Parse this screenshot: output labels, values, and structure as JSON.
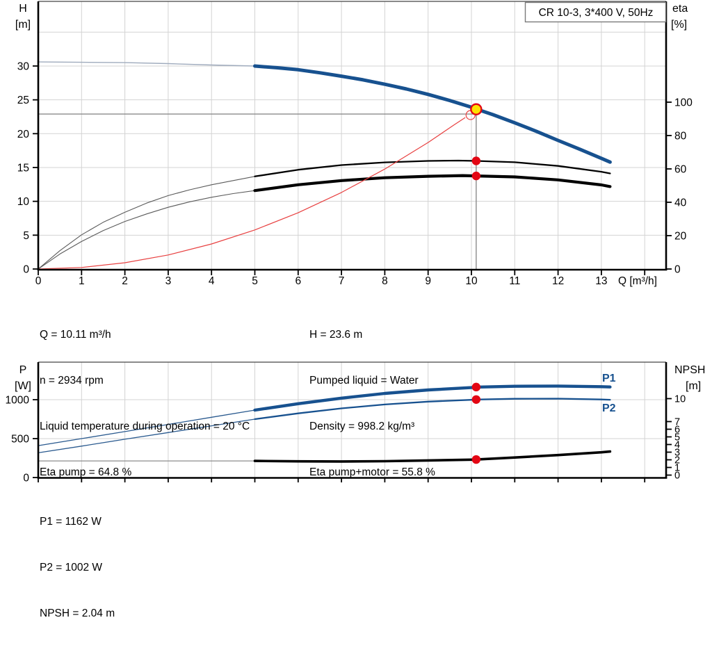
{
  "header": {
    "title_box": "CR 10-3, 3*400 V, 50Hz",
    "title_border_color": "#7a7a7a"
  },
  "top_chart_text": {
    "y_axis": "H",
    "y_axis_unit": "[m]",
    "right_axis": "eta",
    "right_axis_unit": "[%]",
    "x_axis": "Q [m³/h]"
  },
  "bottom_chart_text": {
    "y_axis": "P",
    "y_axis_unit": "[W]",
    "right_axis": "NPSH",
    "right_axis_unit": "[m]",
    "p1_label": "P1",
    "p2_label": "P2"
  },
  "info": {
    "left": [
      "Q = 10.11 m³/h",
      "n = 2934 rpm",
      "Liquid temperature during operation = 20 °C",
      "Eta pump = 64.8 %"
    ],
    "right": [
      "H = 23.6 m",
      "Pumped liquid = Water",
      "Density = 998.2 kg/m³",
      "Eta pump+motor = 55.8 %"
    ]
  },
  "results": [
    "P1 = 1162 W",
    "P2 = 1002 W",
    "NPSH = 2.04 m"
  ],
  "colors": {
    "curve_blue": "#17518f",
    "curve_blue_thin": "#2a5a8f",
    "pre_range_gray_blue": "#9fabbd",
    "pre_range_gray": "#5a5a5a",
    "black": "#000000",
    "npsh_thin": "#8c8c8c",
    "system_red": "#e84040",
    "marker_red": "#e30613",
    "duty_yellow": "#ffe000",
    "grid": "#d3d3d3",
    "crosshair": "#8a8a8a",
    "axis": "#000000"
  },
  "chart_data": [
    {
      "type": "line",
      "title": "CR 10-3, 3*400 V, 50Hz",
      "xlabel": "Q [m³/h]",
      "ylabel": "H [m]",
      "y2label": "eta [%]",
      "xticks": [
        0,
        1,
        2,
        3,
        4,
        5,
        6,
        7,
        8,
        9,
        10,
        11,
        12,
        13
      ],
      "yticks": [
        0,
        5,
        10,
        15,
        20,
        25,
        30
      ],
      "y2ticks": [
        0,
        20,
        40,
        60,
        80,
        100
      ],
      "xlim": [
        0,
        14.5
      ],
      "ylim": [
        0,
        39.5
      ],
      "y2lim": [
        0,
        160
      ],
      "grid": true,
      "duty_point": {
        "q": 10.11,
        "h": 23.6
      },
      "crosshair": {
        "q": 10.11,
        "h": 22.9
      },
      "arrow_ring": {
        "q": 9.98,
        "h": 22.75
      },
      "markers": [
        {
          "q": 10.11,
          "eta": 64.8
        },
        {
          "q": 10.11,
          "eta": 55.8
        }
      ],
      "series": [
        {
          "name": "head-pre-range",
          "axis": "h",
          "color": "#9fabbd",
          "width": 1.4,
          "points": [
            [
              0,
              30.6
            ],
            [
              1,
              30.55
            ],
            [
              2,
              30.5
            ],
            [
              3,
              30.35
            ],
            [
              4,
              30.15
            ],
            [
              5,
              30.0
            ]
          ]
        },
        {
          "name": "head",
          "axis": "h",
          "color": "#17518f",
          "width": 5,
          "points": [
            [
              5,
              30.0
            ],
            [
              5.5,
              29.75
            ],
            [
              6,
              29.45
            ],
            [
              6.5,
              29.0
            ],
            [
              7,
              28.5
            ],
            [
              7.5,
              27.95
            ],
            [
              8,
              27.3
            ],
            [
              8.5,
              26.6
            ],
            [
              9,
              25.8
            ],
            [
              9.5,
              24.9
            ],
            [
              10,
              23.9
            ],
            [
              10.11,
              23.65
            ],
            [
              10.5,
              22.8
            ],
            [
              11,
              21.6
            ],
            [
              11.5,
              20.35
            ],
            [
              12,
              19.0
            ],
            [
              12.5,
              17.7
            ],
            [
              13,
              16.35
            ],
            [
              13.2,
              15.8
            ]
          ]
        },
        {
          "name": "eta-pump-pre-range",
          "axis": "eta",
          "color": "#5a5a5a",
          "width": 1.1,
          "points": [
            [
              0,
              0
            ],
            [
              0.5,
              11
            ],
            [
              1,
              20.5
            ],
            [
              1.5,
              28
            ],
            [
              2,
              34
            ],
            [
              2.5,
              39.5
            ],
            [
              3,
              44
            ],
            [
              3.5,
              47.5
            ],
            [
              4,
              50.5
            ],
            [
              4.5,
              53
            ],
            [
              5,
              55.5
            ]
          ]
        },
        {
          "name": "eta-pump",
          "axis": "eta",
          "color": "#000000",
          "width": 2.3,
          "points": [
            [
              5,
              55.5
            ],
            [
              6,
              59.5
            ],
            [
              7,
              62.3
            ],
            [
              8,
              63.9
            ],
            [
              9,
              64.8
            ],
            [
              9.7,
              65.0
            ],
            [
              10.11,
              64.8
            ],
            [
              11,
              64.0
            ],
            [
              12,
              61.8
            ],
            [
              13,
              58.3
            ],
            [
              13.2,
              57.3
            ]
          ]
        },
        {
          "name": "eta-pump-motor-pre-range",
          "axis": "eta",
          "color": "#5a5a5a",
          "width": 1.1,
          "points": [
            [
              0,
              0
            ],
            [
              0.5,
              9
            ],
            [
              1,
              16.5
            ],
            [
              1.5,
              23
            ],
            [
              2,
              28.5
            ],
            [
              2.5,
              33
            ],
            [
              3,
              37
            ],
            [
              3.5,
              40.3
            ],
            [
              4,
              43
            ],
            [
              4.5,
              45.2
            ],
            [
              5,
              47
            ]
          ]
        },
        {
          "name": "eta-pump-motor",
          "axis": "eta",
          "color": "#000000",
          "width": 4.2,
          "points": [
            [
              5,
              47
            ],
            [
              6,
              50.5
            ],
            [
              7,
              53
            ],
            [
              8,
              54.7
            ],
            [
              9,
              55.6
            ],
            [
              9.8,
              56.0
            ],
            [
              10.11,
              55.8
            ],
            [
              11,
              55.2
            ],
            [
              12,
              53.4
            ],
            [
              13,
              50.4
            ],
            [
              13.2,
              49.4
            ]
          ]
        },
        {
          "name": "system-curve",
          "axis": "h",
          "color": "#e84040",
          "width": 1.2,
          "points": [
            [
              0,
              0
            ],
            [
              1,
              0.23
            ],
            [
              2,
              0.92
            ],
            [
              3,
              2.08
            ],
            [
              4,
              3.7
            ],
            [
              5,
              5.77
            ],
            [
              6,
              8.31
            ],
            [
              7,
              11.31
            ],
            [
              8,
              14.77
            ],
            [
              9,
              18.7
            ],
            [
              9.6,
              21.3
            ],
            [
              9.85,
              22.35
            ]
          ]
        }
      ]
    },
    {
      "type": "line",
      "ylabel": "P [W]",
      "y2label": "NPSH [m]",
      "yticks": [
        0,
        500,
        1000
      ],
      "y2ticks": [
        0,
        1,
        2,
        3,
        4,
        5,
        6,
        7,
        10
      ],
      "xlim": [
        0,
        14.5
      ],
      "ylim": [
        0,
        1480
      ],
      "grid": true,
      "markers": [
        {
          "q": 10.11,
          "p": 1162
        },
        {
          "q": 10.11,
          "p": 1002
        },
        {
          "q": 10.11,
          "npsh": 2.04
        }
      ],
      "series": [
        {
          "name": "p1-pre-range",
          "axis": "p",
          "color": "#2a5a8f",
          "width": 1.3,
          "points": [
            [
              0,
              410
            ],
            [
              1,
              500
            ],
            [
              2,
              590
            ],
            [
              3,
              682
            ],
            [
              4,
              774
            ],
            [
              5,
              866
            ]
          ]
        },
        {
          "name": "p1",
          "axis": "p",
          "color": "#17518f",
          "width": 4.4,
          "points": [
            [
              5,
              866
            ],
            [
              6,
              948
            ],
            [
              7,
              1020
            ],
            [
              8,
              1080
            ],
            [
              9,
              1125
            ],
            [
              10,
              1155
            ],
            [
              10.11,
              1162
            ],
            [
              11,
              1172
            ],
            [
              12,
              1175
            ],
            [
              13,
              1167
            ],
            [
              13.2,
              1163
            ]
          ]
        },
        {
          "name": "p2-pre-range",
          "axis": "p",
          "color": "#2a5a8f",
          "width": 1.3,
          "points": [
            [
              0,
              318
            ],
            [
              1,
              404
            ],
            [
              2,
              492
            ],
            [
              3,
              578
            ],
            [
              4,
              664
            ],
            [
              5,
              750
            ]
          ]
        },
        {
          "name": "p2",
          "axis": "p",
          "color": "#17518f",
          "width": 2.3,
          "points": [
            [
              5,
              750
            ],
            [
              6,
              824
            ],
            [
              7,
              888
            ],
            [
              8,
              938
            ],
            [
              9,
              975
            ],
            [
              10,
              998
            ],
            [
              10.11,
              1002
            ],
            [
              11,
              1012
            ],
            [
              12,
              1013
            ],
            [
              13,
              1003
            ],
            [
              13.2,
              999
            ]
          ]
        },
        {
          "name": "npsh-pre-range",
          "axis": "npsh",
          "color": "#8c8c8c",
          "width": 1.3,
          "points": [
            [
              0,
              1.85
            ],
            [
              5,
              1.85
            ]
          ]
        },
        {
          "name": "npsh",
          "axis": "npsh",
          "color": "#000000",
          "width": 3.6,
          "points": [
            [
              5,
              1.85
            ],
            [
              6,
              1.8
            ],
            [
              7,
              1.78
            ],
            [
              8,
              1.82
            ],
            [
              9,
              1.92
            ],
            [
              10,
              2.02
            ],
            [
              10.11,
              2.04
            ],
            [
              11,
              2.3
            ],
            [
              12,
              2.62
            ],
            [
              13,
              2.98
            ],
            [
              13.2,
              3.08
            ]
          ]
        }
      ]
    }
  ]
}
